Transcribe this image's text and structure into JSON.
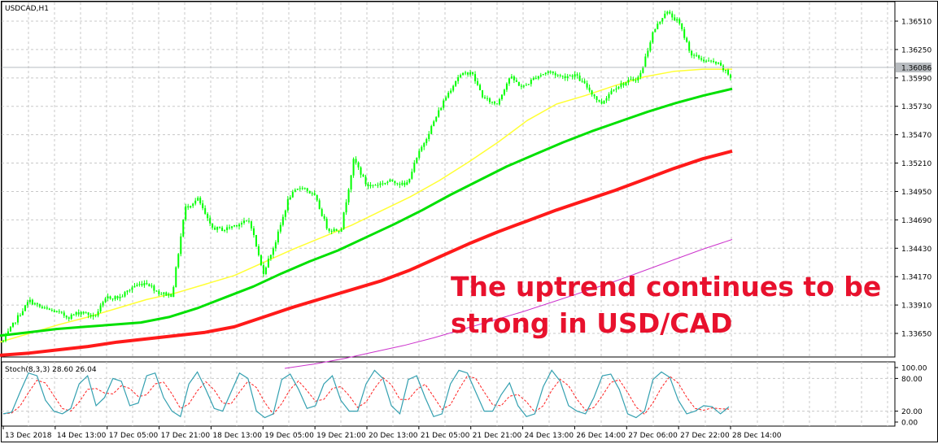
{
  "chart_data": {
    "type": "candlestick",
    "symbol_label": "USDCAD,H1",
    "annotation": [
      "The uptrend continues to be",
      "strong in USD/CAD"
    ],
    "price_axis": {
      "ylim": [
        1.3637,
        1.3665
      ],
      "ticks": [
        "1.36510",
        "1.36250",
        "1.35990",
        "1.35730",
        "1.35470",
        "1.35210",
        "1.34950",
        "1.34690",
        "1.34430",
        "1.34170",
        "1.33910",
        "1.33650"
      ],
      "tick_values": [
        1.3651,
        1.3625,
        1.3599,
        1.3573,
        1.3547,
        1.3521,
        1.3495,
        1.3469,
        1.3443,
        1.3417,
        1.3391,
        1.3365
      ],
      "current_price": "1.36086",
      "current_value": 1.36086
    },
    "time_axis": {
      "ticks": [
        "13 Dec 2018",
        "14 Dec 13:00",
        "17 Dec 05:00",
        "17 Dec 21:00",
        "18 Dec 13:00",
        "19 Dec 05:00",
        "19 Dec 21:00",
        "20 Dec 13:00",
        "21 Dec 05:00",
        "21 Dec 21:00",
        "24 Dec 13:00",
        "26 Dec 14:00",
        "27 Dec 06:00",
        "27 Dec 22:00",
        "28 Dec 14:00"
      ]
    },
    "price_path": [
      1.3358,
      1.3378,
      1.3395,
      1.3388,
      1.3385,
      1.338,
      1.3385,
      1.338,
      1.3398,
      1.3398,
      1.3408,
      1.3412,
      1.3402,
      1.34,
      1.348,
      1.3488,
      1.3462,
      1.346,
      1.3465,
      1.3468,
      1.342,
      1.345,
      1.349,
      1.35,
      1.349,
      1.346,
      1.346,
      1.3525,
      1.35,
      1.3502,
      1.3505,
      1.35,
      1.353,
      1.3555,
      1.358,
      1.36,
      1.3605,
      1.358,
      1.3575,
      1.36,
      1.359,
      1.36,
      1.3605,
      1.36,
      1.3602,
      1.359,
      1.3575,
      1.359,
      1.3595,
      1.36,
      1.364,
      1.366,
      1.365,
      1.362,
      1.3615,
      1.3612,
      1.36
    ],
    "moving_averages": [
      {
        "color": "#ffff33",
        "values": [
          1.3357,
          1.3365,
          1.3373,
          1.338,
          1.3388,
          1.3396,
          1.3402,
          1.341,
          1.3418,
          1.343,
          1.3442,
          1.3453,
          1.3464,
          1.3477,
          1.349,
          1.3505,
          1.3522,
          1.354,
          1.356,
          1.3575,
          1.3583,
          1.3592,
          1.36,
          1.3605,
          1.3607,
          1.3607
        ]
      },
      {
        "color": "#00e000",
        "values": [
          1.3363,
          1.3366,
          1.3369,
          1.3371,
          1.3373,
          1.3375,
          1.338,
          1.3388,
          1.3398,
          1.3408,
          1.342,
          1.3431,
          1.3441,
          1.3453,
          1.3465,
          1.3478,
          1.3492,
          1.3505,
          1.3518,
          1.3529,
          1.354,
          1.355,
          1.3559,
          1.3568,
          1.3576,
          1.3583,
          1.3589
        ]
      },
      {
        "color": "#ff1a1a",
        "values": [
          1.3345,
          1.3347,
          1.335,
          1.3353,
          1.3357,
          1.336,
          1.3363,
          1.3366,
          1.3371,
          1.338,
          1.3389,
          1.3397,
          1.3405,
          1.3413,
          1.3423,
          1.3435,
          1.3447,
          1.3458,
          1.3468,
          1.3478,
          1.3487,
          1.3496,
          1.3506,
          1.3516,
          1.3525,
          1.3532
        ]
      },
      {
        "color": "#cc33cc",
        "values": [
          1.3333,
          1.3337,
          1.3342,
          1.3348,
          1.3354,
          1.3361,
          1.3369,
          1.3377,
          1.3385,
          1.3394,
          1.3403,
          1.3412,
          1.3422,
          1.3432,
          1.3442,
          1.3451
        ]
      }
    ],
    "stochastic": {
      "label": "Stoch(8,3,3) 28.60 26.04",
      "ylim": [
        0,
        100
      ],
      "ticks": [
        "100.00",
        "80.00",
        "20.00",
        "0.00"
      ],
      "tick_values": [
        100,
        80,
        20,
        0
      ],
      "k_color": "#33a0b0",
      "d_color": "#ff2020",
      "k_values": [
        15,
        18,
        55,
        90,
        85,
        40,
        20,
        15,
        25,
        70,
        85,
        30,
        45,
        80,
        75,
        30,
        35,
        85,
        90,
        45,
        20,
        10,
        70,
        92,
        60,
        25,
        20,
        55,
        90,
        80,
        20,
        8,
        15,
        78,
        88,
        60,
        25,
        30,
        70,
        85,
        40,
        20,
        20,
        70,
        95,
        80,
        30,
        15,
        78,
        85,
        45,
        10,
        15,
        70,
        95,
        90,
        55,
        20,
        20,
        50,
        72,
        30,
        10,
        15,
        65,
        95,
        75,
        30,
        20,
        15,
        45,
        85,
        88,
        60,
        15,
        8,
        20,
        78,
        92,
        82,
        40,
        15,
        20,
        30,
        28,
        15,
        28
      ]
    }
  }
}
